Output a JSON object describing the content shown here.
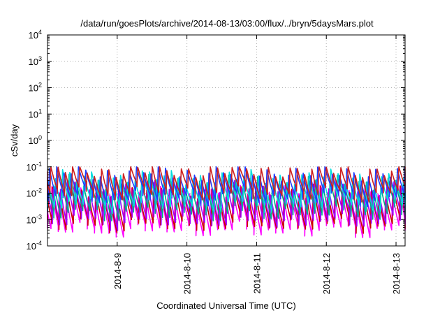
{
  "chart_data": {
    "type": "line",
    "title": "/data/run/goesPlots/archive/2014-08-13/03:00/flux/../bryn/5daysMars.plot",
    "xlabel": "Coordinated Universal Time (UTC)",
    "ylabel": "cSv/day",
    "yscale": "log",
    "ylim": [
      0.0001,
      10000
    ],
    "yticks": [
      {
        "value": 0.0001,
        "base": "10",
        "exp": "-4"
      },
      {
        "value": 0.001,
        "base": "10",
        "exp": "-3"
      },
      {
        "value": 0.01,
        "base": "10",
        "exp": "-2"
      },
      {
        "value": 0.1,
        "base": "10",
        "exp": "-1"
      },
      {
        "value": 1,
        "base": "10",
        "exp": "0"
      },
      {
        "value": 10,
        "base": "10",
        "exp": "1"
      },
      {
        "value": 100,
        "base": "10",
        "exp": "2"
      },
      {
        "value": 1000,
        "base": "10",
        "exp": "3"
      },
      {
        "value": 10000,
        "base": "10",
        "exp": "4"
      }
    ],
    "xlim": [
      0.0,
      5.13
    ],
    "xticks": [
      {
        "value": 1,
        "label": "2014-8-9"
      },
      {
        "value": 2,
        "label": "2014-8-10"
      },
      {
        "value": 3,
        "label": "2014-8-11"
      },
      {
        "value": 4,
        "label": "2014-8-12"
      },
      {
        "value": 5,
        "label": "2014-8-13"
      }
    ],
    "grid": true,
    "legend": "none",
    "period_days": 0.104,
    "series": [
      {
        "color": "#ff00ff",
        "peak": 0.0095,
        "trough": 0.00045,
        "phase": 0.05
      },
      {
        "color": "#cc0000",
        "peak": 0.012,
        "trough": 0.0007,
        "phase": 0.06
      },
      {
        "color": "#a000ff",
        "peak": 0.016,
        "trough": 0.001,
        "phase": 0.07
      },
      {
        "color": "#00aa88",
        "peak": 0.025,
        "trough": 0.002,
        "phase": 0.09
      },
      {
        "color": "#00dddd",
        "peak": 0.04,
        "trough": 0.004,
        "phase": 0.1
      },
      {
        "color": "#1e3cff",
        "peak": 0.06,
        "trough": 0.008,
        "phase": 0.12
      },
      {
        "color": "#cc2020",
        "peak": 0.075,
        "trough": 0.011,
        "phase": 0.14
      }
    ]
  }
}
